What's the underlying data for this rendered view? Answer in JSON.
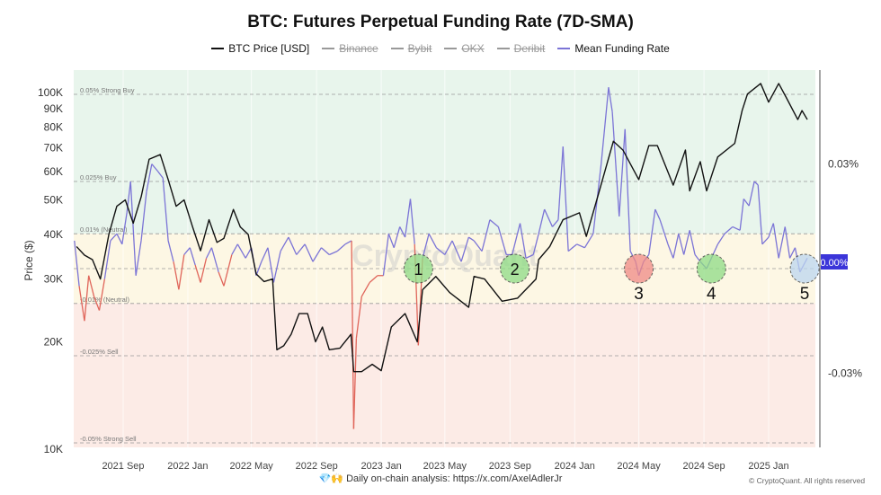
{
  "chart_data": {
    "type": "line",
    "title": "BTC: Futures Perpetual Funding Rate (7D-SMA)",
    "legend": [
      {
        "name": "BTC Price [USD]",
        "color": "#111111",
        "active": true
      },
      {
        "name": "Binance",
        "color": "#999999",
        "active": false
      },
      {
        "name": "Bybit",
        "color": "#999999",
        "active": false
      },
      {
        "name": "OKX",
        "color": "#999999",
        "active": false
      },
      {
        "name": "Deribit",
        "color": "#999999",
        "active": false
      },
      {
        "name": "Mean Funding Rate",
        "color": "#7b74d6",
        "active": true
      }
    ],
    "legend_placement": "top-center",
    "ylabel_left": "Price ($)",
    "y_left_scale": "log",
    "y_left_ticks": [
      "100K",
      "90K",
      "80K",
      "70K",
      "60K",
      "50K",
      "40K",
      "30K",
      "20K",
      "10K"
    ],
    "y_left_tick_values": [
      100000,
      90000,
      80000,
      70000,
      60000,
      50000,
      40000,
      30000,
      20000,
      10000
    ],
    "y_right_ticks": [
      "0.03%",
      "-0.03%"
    ],
    "y_right_tick_values": [
      0.03,
      -0.03
    ],
    "x_ticks": [
      "2021 Sep",
      "2022 Jan",
      "2022 May",
      "2022 Sep",
      "2023 Jan",
      "2023 May",
      "2023 Sep",
      "2024 Jan",
      "2024 May",
      "2024 Sep",
      "2025 Jan"
    ],
    "x_tick_dates": [
      "2021-09-01",
      "2022-01-01",
      "2022-05-01",
      "2022-09-01",
      "2023-01-01",
      "2023-05-01",
      "2023-09-01",
      "2024-01-01",
      "2024-05-01",
      "2024-09-01",
      "2025-01-01"
    ],
    "levels": [
      {
        "label": "0.05% Strong Buy",
        "value": 0.05
      },
      {
        "label": "0.025% Buy",
        "value": 0.025
      },
      {
        "label": "0.01% (Neutral)",
        "value": 0.01
      },
      {
        "label": "",
        "value": 0
      },
      {
        "label": "-0.01% (Neutral)",
        "value": -0.01
      },
      {
        "label": "-0.025% Sell",
        "value": -0.025
      },
      {
        "label": "-0.05% Strong Sell",
        "value": -0.05
      }
    ],
    "zones": {
      "buy": "#e8f5ec",
      "neutral": "#fdf7e4",
      "sell": "#fcebe6"
    },
    "current_value_badge": "0.00%",
    "badge_color": "#3b35d9",
    "negative_color": "#e0655a",
    "watermark": "CryptoQuant",
    "annotations": [
      {
        "label": "1",
        "date": "2023-03-12",
        "value": 0,
        "color": "#8fdc86",
        "label_inside": true
      },
      {
        "label": "2",
        "date": "2023-09-10",
        "value": 0,
        "color": "#8fdc86",
        "label_inside": true
      },
      {
        "label": "3",
        "date": "2024-05-01",
        "value": 0,
        "color": "#f08a86",
        "label_inside": false
      },
      {
        "label": "4",
        "date": "2024-09-15",
        "value": 0,
        "color": "#8fdc86",
        "label_inside": false
      },
      {
        "label": "5",
        "date": "2025-03-10",
        "value": 0,
        "color": "#bcd6f0",
        "label_inside": false
      }
    ],
    "series": [
      {
        "name": "BTC Price [USD]",
        "axis": "left",
        "points": [
          [
            "2021-06-05",
            37000
          ],
          [
            "2021-06-20",
            35000
          ],
          [
            "2021-07-05",
            34000
          ],
          [
            "2021-07-20",
            30000
          ],
          [
            "2021-08-05",
            40000
          ],
          [
            "2021-08-20",
            48000
          ],
          [
            "2021-09-05",
            50000
          ],
          [
            "2021-09-20",
            43000
          ],
          [
            "2021-10-05",
            51000
          ],
          [
            "2021-10-20",
            65000
          ],
          [
            "2021-11-10",
            67000
          ],
          [
            "2021-11-25",
            57000
          ],
          [
            "2021-12-10",
            48000
          ],
          [
            "2021-12-25",
            50000
          ],
          [
            "2022-01-10",
            42000
          ],
          [
            "2022-01-25",
            36000
          ],
          [
            "2022-02-10",
            44000
          ],
          [
            "2022-02-25",
            38000
          ],
          [
            "2022-03-10",
            39000
          ],
          [
            "2022-03-28",
            47000
          ],
          [
            "2022-04-10",
            42000
          ],
          [
            "2022-04-25",
            40000
          ],
          [
            "2022-05-10",
            31000
          ],
          [
            "2022-05-25",
            29500
          ],
          [
            "2022-06-10",
            30000
          ],
          [
            "2022-06-18",
            19000
          ],
          [
            "2022-07-01",
            19500
          ],
          [
            "2022-07-15",
            21000
          ],
          [
            "2022-07-30",
            24000
          ],
          [
            "2022-08-15",
            24000
          ],
          [
            "2022-08-30",
            20000
          ],
          [
            "2022-09-12",
            22000
          ],
          [
            "2022-09-25",
            19000
          ],
          [
            "2022-10-15",
            19200
          ],
          [
            "2022-11-05",
            21000
          ],
          [
            "2022-11-10",
            16500
          ],
          [
            "2022-11-25",
            16500
          ],
          [
            "2022-12-15",
            17300
          ],
          [
            "2023-01-01",
            16600
          ],
          [
            "2023-01-20",
            22000
          ],
          [
            "2023-02-15",
            24000
          ],
          [
            "2023-03-10",
            20000
          ],
          [
            "2023-03-20",
            28000
          ],
          [
            "2023-04-14",
            30500
          ],
          [
            "2023-05-10",
            27500
          ],
          [
            "2023-06-15",
            25000
          ],
          [
            "2023-06-25",
            30500
          ],
          [
            "2023-07-15",
            30000
          ],
          [
            "2023-08-17",
            26000
          ],
          [
            "2023-09-15",
            26500
          ],
          [
            "2023-10-20",
            30000
          ],
          [
            "2023-10-25",
            34000
          ],
          [
            "2023-11-15",
            37000
          ],
          [
            "2023-12-10",
            44000
          ],
          [
            "2024-01-10",
            46000
          ],
          [
            "2024-01-23",
            39500
          ],
          [
            "2024-02-15",
            52000
          ],
          [
            "2024-03-14",
            73000
          ],
          [
            "2024-04-01",
            69000
          ],
          [
            "2024-05-01",
            57000
          ],
          [
            "2024-05-20",
            71000
          ],
          [
            "2024-06-05",
            71000
          ],
          [
            "2024-07-05",
            55000
          ],
          [
            "2024-07-28",
            69000
          ],
          [
            "2024-08-05",
            53000
          ],
          [
            "2024-08-25",
            64000
          ],
          [
            "2024-09-06",
            53000
          ],
          [
            "2024-09-27",
            66000
          ],
          [
            "2024-10-29",
            72000
          ],
          [
            "2024-11-12",
            89000
          ],
          [
            "2024-11-22",
            99000
          ],
          [
            "2024-12-17",
            106000
          ],
          [
            "2025-01-01",
            94000
          ],
          [
            "2025-01-20",
            106000
          ],
          [
            "2025-02-03",
            97000
          ],
          [
            "2025-02-25",
            84000
          ],
          [
            "2025-03-05",
            89000
          ],
          [
            "2025-03-15",
            84000
          ]
        ]
      },
      {
        "name": "Mean Funding Rate",
        "axis": "right",
        "unit": "%",
        "points": [
          [
            "2021-06-01",
            0.008
          ],
          [
            "2021-06-10",
            -0.005
          ],
          [
            "2021-06-20",
            -0.015
          ],
          [
            "2021-06-28",
            -0.002
          ],
          [
            "2021-07-08",
            -0.008
          ],
          [
            "2021-07-18",
            -0.012
          ],
          [
            "2021-07-28",
            -0.003
          ],
          [
            "2021-08-08",
            0.008
          ],
          [
            "2021-08-20",
            0.01
          ],
          [
            "2021-08-30",
            0.007
          ],
          [
            "2021-09-08",
            0.016
          ],
          [
            "2021-09-15",
            0.025
          ],
          [
            "2021-09-25",
            -0.002
          ],
          [
            "2021-10-05",
            0.008
          ],
          [
            "2021-10-15",
            0.022
          ],
          [
            "2021-10-25",
            0.03
          ],
          [
            "2021-11-05",
            0.028
          ],
          [
            "2021-11-15",
            0.026
          ],
          [
            "2021-11-25",
            0.008
          ],
          [
            "2021-12-05",
            0.002
          ],
          [
            "2021-12-15",
            -0.006
          ],
          [
            "2021-12-25",
            0.004
          ],
          [
            "2022-01-05",
            0.006
          ],
          [
            "2022-01-15",
            0.001
          ],
          [
            "2022-01-25",
            -0.004
          ],
          [
            "2022-02-05",
            0.003
          ],
          [
            "2022-02-15",
            0.006
          ],
          [
            "2022-02-28",
            -0.001
          ],
          [
            "2022-03-10",
            -0.005
          ],
          [
            "2022-03-25",
            0.004
          ],
          [
            "2022-04-05",
            0.007
          ],
          [
            "2022-04-20",
            0.003
          ],
          [
            "2022-05-01",
            0.006
          ],
          [
            "2022-05-10",
            -0.002
          ],
          [
            "2022-05-20",
            0.002
          ],
          [
            "2022-06-01",
            0.006
          ],
          [
            "2022-06-12",
            -0.004
          ],
          [
            "2022-06-25",
            0.005
          ],
          [
            "2022-07-10",
            0.009
          ],
          [
            "2022-07-25",
            0.004
          ],
          [
            "2022-08-10",
            0.007
          ],
          [
            "2022-08-25",
            0.002
          ],
          [
            "2022-09-10",
            0.006
          ],
          [
            "2022-09-25",
            0.004
          ],
          [
            "2022-10-10",
            0.005
          ],
          [
            "2022-10-25",
            0.007
          ],
          [
            "2022-11-06",
            0.008
          ],
          [
            "2022-11-10",
            -0.046
          ],
          [
            "2022-11-15",
            -0.02
          ],
          [
            "2022-11-25",
            -0.008
          ],
          [
            "2022-12-10",
            -0.004
          ],
          [
            "2022-12-25",
            -0.002
          ],
          [
            "2023-01-05",
            -0.002
          ],
          [
            "2023-01-15",
            0.01
          ],
          [
            "2023-01-25",
            0.006
          ],
          [
            "2023-02-05",
            0.012
          ],
          [
            "2023-02-15",
            0.009
          ],
          [
            "2023-02-25",
            0.02
          ],
          [
            "2023-03-05",
            0.007
          ],
          [
            "2023-03-12",
            -0.022
          ],
          [
            "2023-03-20",
            0.003
          ],
          [
            "2023-04-01",
            0.01
          ],
          [
            "2023-04-15",
            0.006
          ],
          [
            "2023-05-01",
            0.004
          ],
          [
            "2023-05-15",
            0.008
          ],
          [
            "2023-06-01",
            0.002
          ],
          [
            "2023-06-15",
            0.009
          ],
          [
            "2023-06-25",
            0.008
          ],
          [
            "2023-07-10",
            0.005
          ],
          [
            "2023-07-25",
            0.014
          ],
          [
            "2023-08-10",
            0.012
          ],
          [
            "2023-08-25",
            0.004
          ],
          [
            "2023-09-05",
            0.004
          ],
          [
            "2023-09-20",
            0.013
          ],
          [
            "2023-10-01",
            0.003
          ],
          [
            "2023-10-15",
            0.004
          ],
          [
            "2023-10-25",
            0.01
          ],
          [
            "2023-11-05",
            0.017
          ],
          [
            "2023-11-20",
            0.012
          ],
          [
            "2023-12-01",
            0.014
          ],
          [
            "2023-12-10",
            0.035
          ],
          [
            "2023-12-20",
            0.005
          ],
          [
            "2024-01-05",
            0.007
          ],
          [
            "2024-01-20",
            0.006
          ],
          [
            "2024-02-05",
            0.01
          ],
          [
            "2024-02-20",
            0.03
          ],
          [
            "2024-03-05",
            0.052
          ],
          [
            "2024-03-12",
            0.045
          ],
          [
            "2024-03-25",
            0.015
          ],
          [
            "2024-04-05",
            0.04
          ],
          [
            "2024-04-15",
            0.005
          ],
          [
            "2024-04-25",
            0.002
          ],
          [
            "2024-05-01",
            -0.002
          ],
          [
            "2024-05-10",
            0.002
          ],
          [
            "2024-05-20",
            0.004
          ],
          [
            "2024-06-01",
            0.017
          ],
          [
            "2024-06-10",
            0.014
          ],
          [
            "2024-06-25",
            0.007
          ],
          [
            "2024-07-05",
            0.003
          ],
          [
            "2024-07-15",
            0.01
          ],
          [
            "2024-07-25",
            0.004
          ],
          [
            "2024-08-05",
            0.011
          ],
          [
            "2024-08-15",
            0.004
          ],
          [
            "2024-08-25",
            0.002
          ],
          [
            "2024-09-06",
            0.0
          ],
          [
            "2024-09-15",
            0.003
          ],
          [
            "2024-09-27",
            0.007
          ],
          [
            "2024-10-10",
            0.01
          ],
          [
            "2024-10-25",
            0.012
          ],
          [
            "2024-11-08",
            0.011
          ],
          [
            "2024-11-15",
            0.02
          ],
          [
            "2024-11-25",
            0.018
          ],
          [
            "2024-12-05",
            0.025
          ],
          [
            "2024-12-12",
            0.024
          ],
          [
            "2024-12-20",
            0.007
          ],
          [
            "2025-01-01",
            0.009
          ],
          [
            "2025-01-10",
            0.013
          ],
          [
            "2025-01-20",
            0.003
          ],
          [
            "2025-02-01",
            0.012
          ],
          [
            "2025-02-10",
            0.003
          ],
          [
            "2025-02-20",
            0.006
          ],
          [
            "2025-03-01",
            -0.001
          ],
          [
            "2025-03-08",
            0.001
          ],
          [
            "2025-03-15",
            0.003
          ]
        ]
      }
    ]
  },
  "footer": {
    "icons": "💎🙌",
    "text": "Daily on-chain analysis: ",
    "link": "https://x.com/AxelAdlerJr"
  },
  "copyright": "© CryptoQuant. All rights reserved"
}
